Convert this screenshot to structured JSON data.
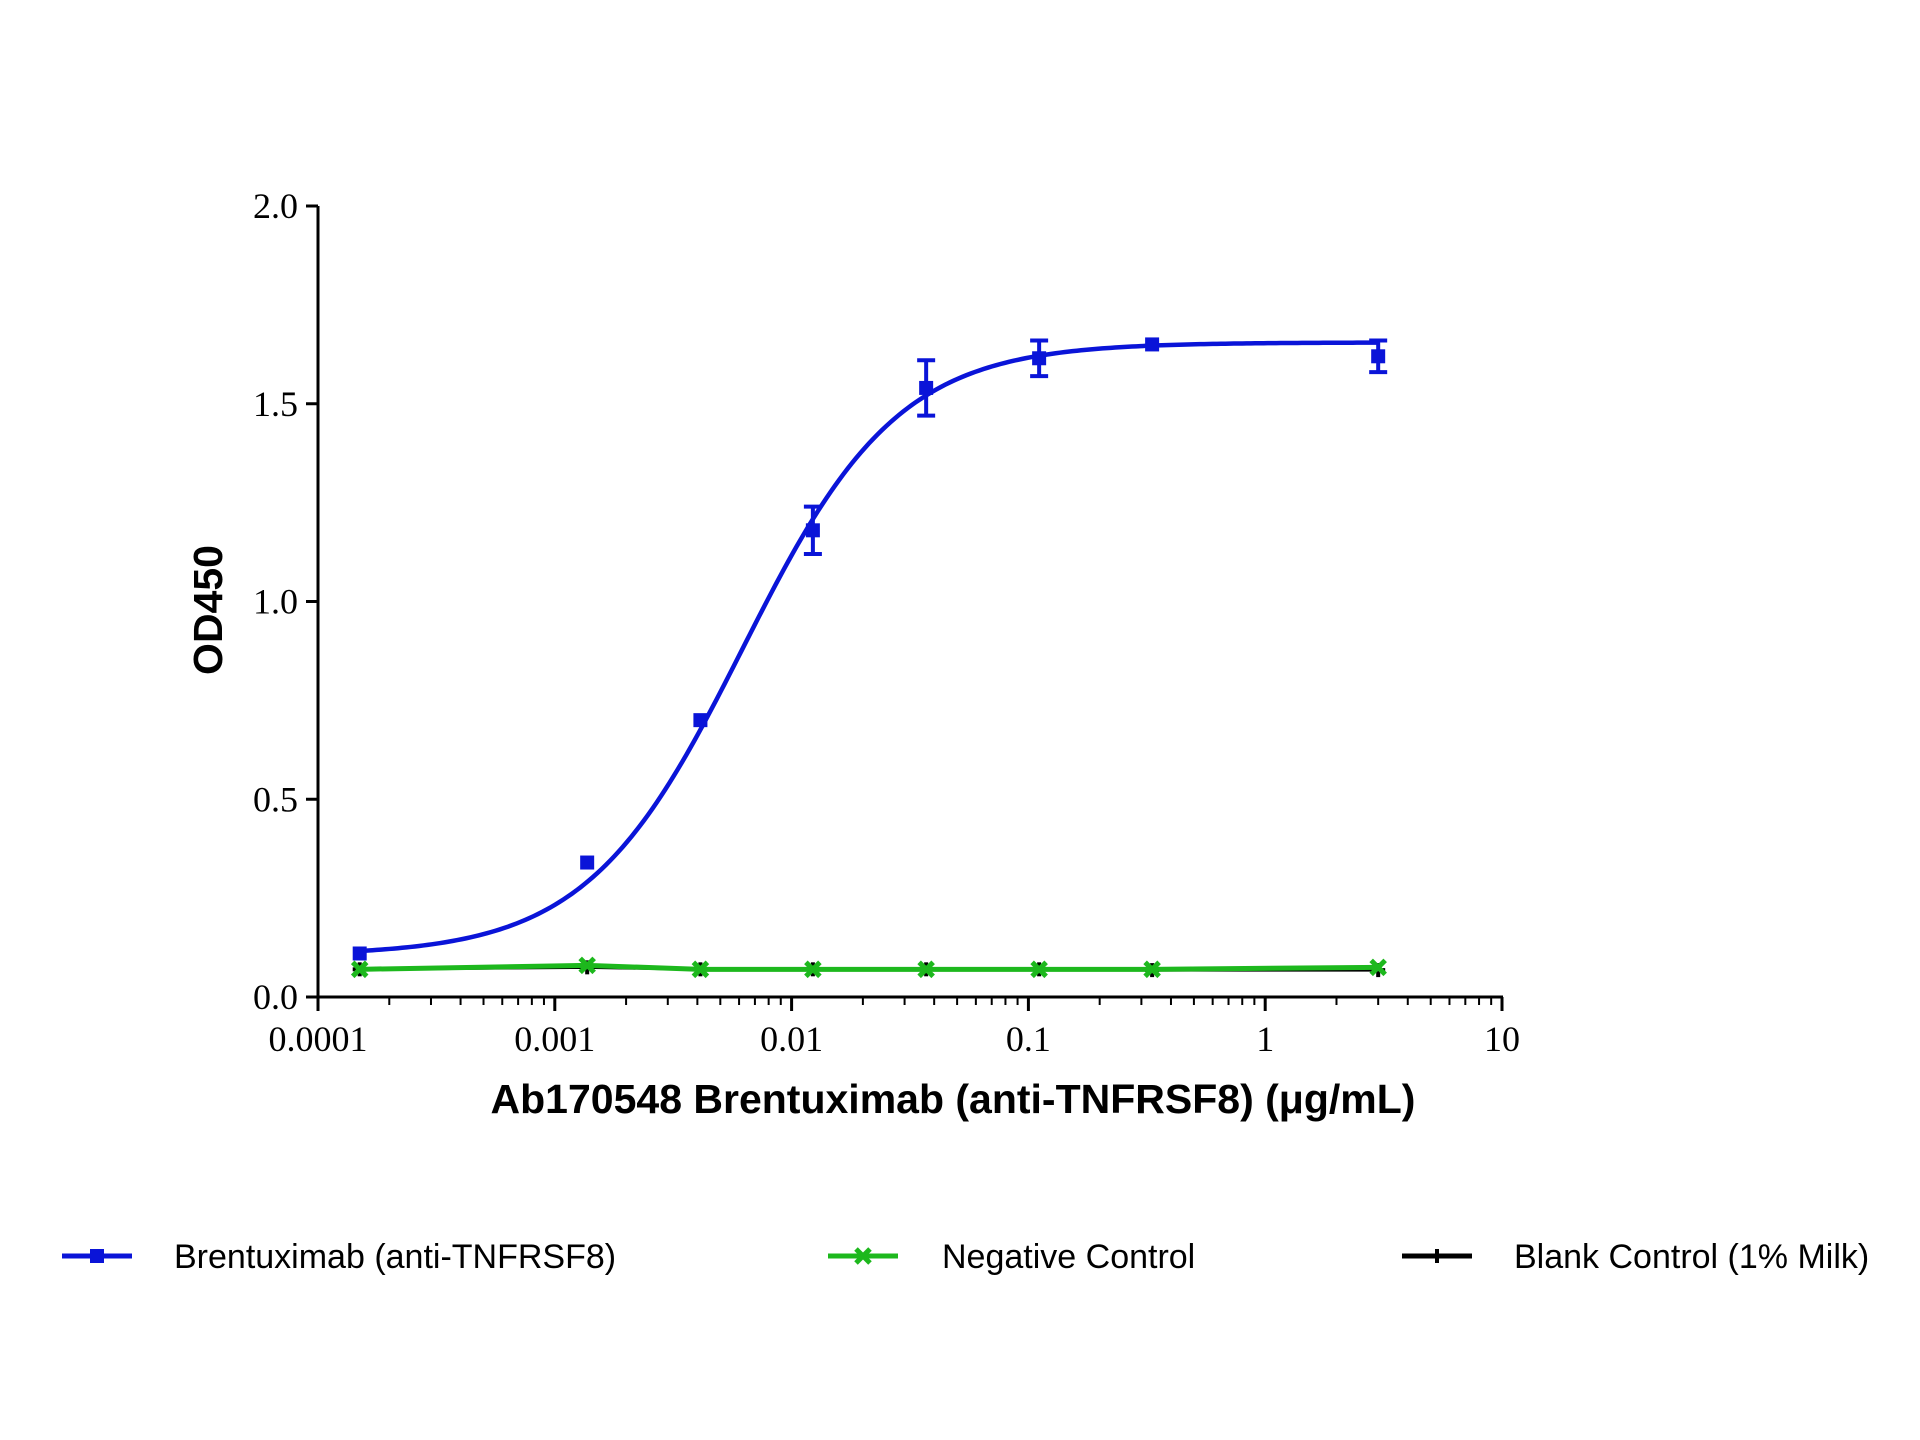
{
  "chart_data": {
    "type": "line",
    "title": "",
    "xlabel": "Ab170548 Brentuximab (anti-TNFRSF8) (μg/mL)",
    "ylabel": "OD450",
    "x_scale": "log",
    "xlim": [
      0.0001,
      10
    ],
    "ylim": [
      0,
      2
    ],
    "x_ticks": [
      0.0001,
      0.001,
      0.01,
      0.1,
      1,
      10
    ],
    "x_tick_labels": [
      "0.0001",
      "0.001",
      "0.01",
      "0.1",
      "1",
      "10"
    ],
    "y_ticks": [
      0,
      0.5,
      1,
      1.5,
      2
    ],
    "y_tick_labels": [
      "0.0",
      "0.5",
      "1.0",
      "1.5",
      "2.0"
    ],
    "grid": false,
    "legend_position": "bottom",
    "series": [
      {
        "name": "Brentuximab (anti-TNFRSF8)",
        "color": "#0a14d8",
        "marker": "square",
        "x": [
          0.00015,
          0.00137,
          0.00412,
          0.0123,
          0.037,
          0.111,
          0.333,
          3
        ],
        "y": [
          0.11,
          0.34,
          0.7,
          1.18,
          1.54,
          1.615,
          1.65,
          1.62
        ],
        "error": [
          0.01,
          0.01,
          0.01,
          0.06,
          0.07,
          0.045,
          0.01,
          0.04
        ],
        "fit_curve": true
      },
      {
        "name": "Negative Control",
        "color": "#1db81d",
        "marker": "x",
        "x": [
          0.00015,
          0.00137,
          0.00412,
          0.0123,
          0.037,
          0.111,
          0.333,
          3
        ],
        "y": [
          0.07,
          0.08,
          0.07,
          0.07,
          0.07,
          0.07,
          0.07,
          0.075
        ]
      },
      {
        "name": "Blank Control (1% Milk)",
        "color": "#000000",
        "marker": "plus",
        "x": [
          0.00015,
          0.00137,
          0.00412,
          0.0123,
          0.037,
          0.111,
          0.333,
          3
        ],
        "y": [
          0.07,
          0.075,
          0.07,
          0.07,
          0.07,
          0.07,
          0.068,
          0.068
        ]
      }
    ]
  }
}
